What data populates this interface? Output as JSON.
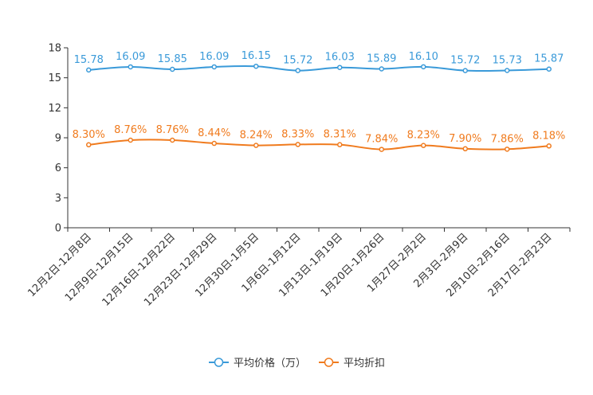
{
  "chart_data": {
    "type": "line",
    "categories": [
      "12月2日-12月8日",
      "12月9日-12月15日",
      "12月16日-12月22日",
      "12月23日-12月29日",
      "12月30日-1月5日",
      "1月6日-1月12日",
      "1月13日-1月19日",
      "1月20日-1月26日",
      "1月27日-2月2日",
      "2月3日-2月9日",
      "2月10日-2月16日",
      "2月17日-2月23日"
    ],
    "ylim": [
      0,
      18
    ],
    "yticks": [
      0,
      3,
      6,
      9,
      12,
      15,
      18
    ],
    "series": [
      {
        "name": "平均价格（万）",
        "color": "#3a9ad9",
        "values": [
          15.78,
          16.09,
          15.85,
          16.09,
          16.15,
          15.72,
          16.03,
          15.89,
          16.1,
          15.72,
          15.73,
          15.87
        ],
        "labels": [
          "15.78",
          "16.09",
          "15.85",
          "16.09",
          "16.15",
          "15.72",
          "16.03",
          "15.89",
          "16.10",
          "15.72",
          "15.73",
          "15.87"
        ]
      },
      {
        "name": "平均折扣",
        "color": "#f07b1e",
        "values": [
          8.3,
          8.76,
          8.76,
          8.44,
          8.24,
          8.33,
          8.31,
          7.84,
          8.23,
          7.9,
          7.86,
          8.18
        ],
        "labels": [
          "8.30%",
          "8.76%",
          "8.76%",
          "8.44%",
          "8.24%",
          "8.33%",
          "8.31%",
          "7.84%",
          "8.23%",
          "7.90%",
          "7.86%",
          "8.18%"
        ]
      }
    ]
  }
}
